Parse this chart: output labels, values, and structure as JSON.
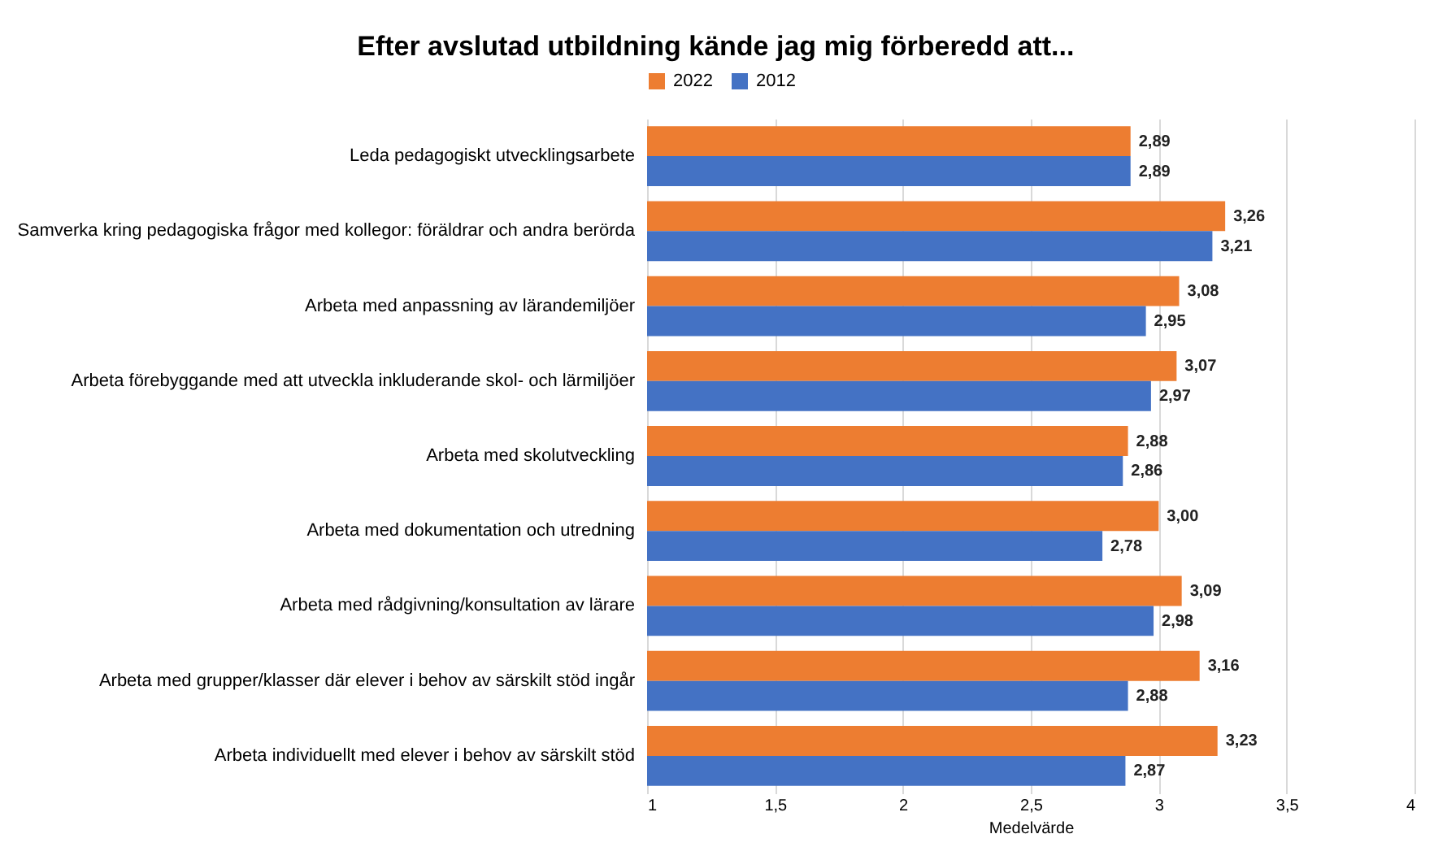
{
  "chart_data": {
    "type": "bar",
    "orientation": "horizontal",
    "title": "Efter avslutad utbildning kände jag mig förberedd att...",
    "xlabel": "Medelvärde",
    "categories": [
      "Leda pedagogiskt utvecklingsarbete",
      "Samverka kring pedagogiska frågor med kollegor: föräldrar och andra berörda",
      "Arbeta med anpassning av lärandemiljöer",
      "Arbeta förebyggande med att utveckla inkluderande skol- och lärmiljöer",
      "Arbeta med skolutveckling",
      "Arbeta med dokumentation och utredning",
      "Arbeta med rådgivning/konsultation av lärare",
      "Arbeta med grupper/klasser där elever i behov av särskilt stöd ingår",
      "Arbeta individuellt med elever i behov av särskilt stöd"
    ],
    "series": [
      {
        "name": "2022",
        "color": "#ed7d31",
        "values": [
          2.89,
          3.26,
          3.08,
          3.07,
          2.88,
          3.0,
          3.09,
          3.16,
          3.23
        ],
        "value_labels": [
          "2,89",
          "3,26",
          "3,08",
          "3,07",
          "2,88",
          "3,00",
          "3,09",
          "3,16",
          "3,23"
        ]
      },
      {
        "name": "2012",
        "color": "#4472c4",
        "values": [
          2.89,
          3.21,
          2.95,
          2.97,
          2.86,
          2.78,
          2.98,
          2.88,
          2.87
        ],
        "value_labels": [
          "2,89",
          "3,21",
          "2,95",
          "2,97",
          "2,86",
          "2,78",
          "2,98",
          "2,88",
          "2,87"
        ]
      }
    ],
    "xlim": [
      1,
      4
    ],
    "xticks": [
      1,
      {
        "value": 1.5,
        "label": "1,5"
      },
      2,
      {
        "value": 2.5,
        "label": "2,5"
      },
      3,
      {
        "value": 3.5,
        "label": "3,5"
      },
      4
    ],
    "grid": "x",
    "legend": "top"
  }
}
